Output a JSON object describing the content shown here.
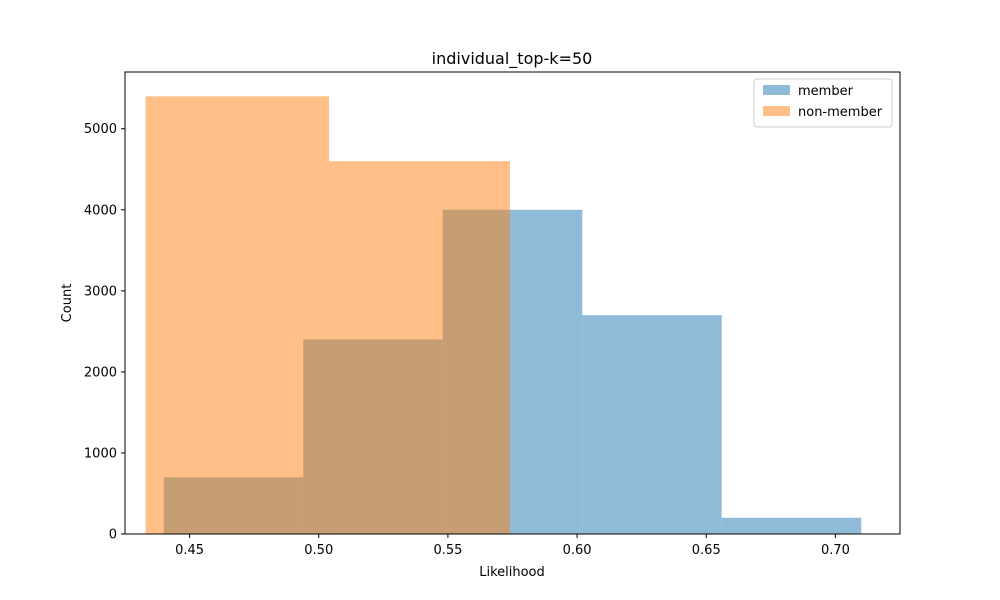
{
  "chart_data": {
    "type": "histogram",
    "title": "individual_top-k=50",
    "xlabel": "Likelihood",
    "ylabel": "Count",
    "xlim": [
      0.425,
      0.725
    ],
    "ylim": [
      0,
      5700
    ],
    "xticks": [
      {
        "value": 0.45,
        "label": "0.45"
      },
      {
        "value": 0.5,
        "label": "0.50"
      },
      {
        "value": 0.55,
        "label": "0.55"
      },
      {
        "value": 0.6,
        "label": "0.60"
      },
      {
        "value": 0.65,
        "label": "0.65"
      },
      {
        "value": 0.7,
        "label": "0.70"
      }
    ],
    "yticks": [
      {
        "value": 0,
        "label": "0"
      },
      {
        "value": 1000,
        "label": "1000"
      },
      {
        "value": 2000,
        "label": "2000"
      },
      {
        "value": 3000,
        "label": "3000"
      },
      {
        "value": 4000,
        "label": "4000"
      },
      {
        "value": 5000,
        "label": "5000"
      }
    ],
    "legend": {
      "position": "top-right"
    },
    "series": [
      {
        "name": "member",
        "color": "#1f77b4",
        "alpha": 0.5,
        "bins": [
          {
            "x0": 0.44,
            "x1": 0.494,
            "count": 700
          },
          {
            "x0": 0.494,
            "x1": 0.548,
            "count": 2400
          },
          {
            "x0": 0.548,
            "x1": 0.602,
            "count": 4000
          },
          {
            "x0": 0.602,
            "x1": 0.656,
            "count": 2700
          },
          {
            "x0": 0.656,
            "x1": 0.71,
            "count": 200
          }
        ]
      },
      {
        "name": "non-member",
        "color": "#ff7f0e",
        "alpha": 0.5,
        "bins": [
          {
            "x0": 0.433,
            "x1": 0.504,
            "count": 5400
          },
          {
            "x0": 0.504,
            "x1": 0.574,
            "count": 4600
          }
        ]
      }
    ]
  }
}
